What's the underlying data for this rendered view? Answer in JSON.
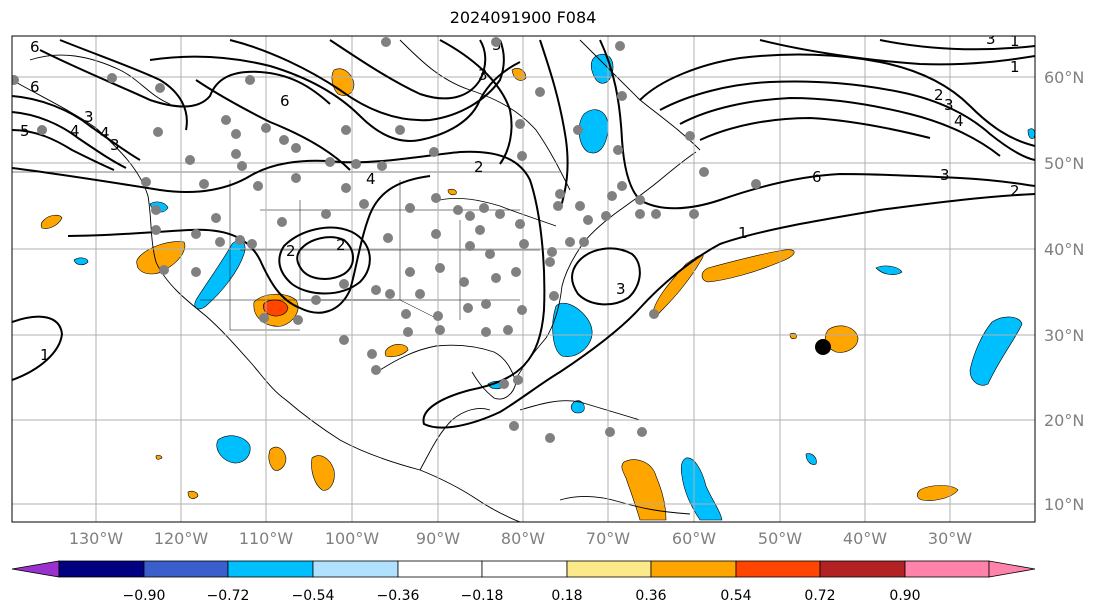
{
  "title": "2024091900 F084",
  "map": {
    "lon_labels": [
      "130°W",
      "120°W",
      "110°W",
      "100°W",
      "90°W",
      "80°W",
      "70°W",
      "60°W",
      "50°W",
      "40°W",
      "30°W"
    ],
    "lat_labels": [
      "60°N",
      "50°N",
      "40°N",
      "30°N",
      "20°N",
      "10°N"
    ],
    "contour_labels": [
      "6",
      "6",
      "5",
      "4",
      "3",
      "4",
      "3",
      "2",
      "1",
      "6",
      "2",
      "3",
      "5",
      "4",
      "1",
      "3",
      "6",
      "3",
      "2",
      "1",
      "1",
      "2",
      "4",
      "3",
      "3",
      "2"
    ],
    "colors": {
      "ocean": "#ffffff",
      "contour": "#000000",
      "grid": "#b0b0b0",
      "station": "#808080",
      "cyan": "#00bfff",
      "orange": "#ffa500",
      "orangered": "#ff4500"
    }
  },
  "colorbar": {
    "tick_labels": [
      "−0.90",
      "−0.72",
      "−0.54",
      "−0.36",
      "−0.18",
      "0.18",
      "0.36",
      "0.54",
      "0.72",
      "0.90"
    ],
    "colors": [
      "#9932cc",
      "#000080",
      "#3a5fcd",
      "#00bfff",
      "#b0e2ff",
      "#ffffff",
      "#fce98a",
      "#ffa500",
      "#ff4500",
      "#b22222",
      "#ff82ab"
    ]
  }
}
